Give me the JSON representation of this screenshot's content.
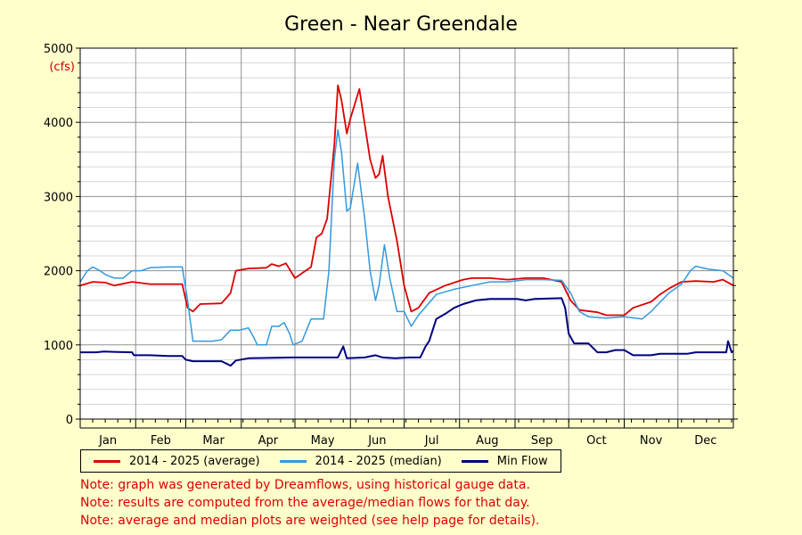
{
  "chart_data": {
    "type": "line",
    "title": "Green - Near Greendale",
    "ylabel_units": "(cfs)",
    "ylim": [
      0,
      5000
    ],
    "y_ticks": [
      0,
      1000,
      2000,
      3000,
      4000,
      5000
    ],
    "x_domain": [
      1,
      366
    ],
    "x_unit": "day of year",
    "month_labels": [
      "Jan",
      "Feb",
      "Mar",
      "Apr",
      "May",
      "Jun",
      "Jul",
      "Aug",
      "Sep",
      "Oct",
      "Nov",
      "Dec"
    ],
    "grid": true,
    "legend_position": "bottom",
    "series": [
      {
        "name": "2014 - 2025 (average)",
        "color": "#dd0000",
        "points": [
          [
            1,
            1800
          ],
          [
            8,
            1850
          ],
          [
            15,
            1840
          ],
          [
            20,
            1800
          ],
          [
            30,
            1850
          ],
          [
            40,
            1820
          ],
          [
            50,
            1820
          ],
          [
            58,
            1820
          ],
          [
            61,
            1500
          ],
          [
            64,
            1450
          ],
          [
            68,
            1550
          ],
          [
            80,
            1560
          ],
          [
            85,
            1700
          ],
          [
            88,
            2000
          ],
          [
            95,
            2030
          ],
          [
            105,
            2040
          ],
          [
            108,
            2090
          ],
          [
            112,
            2060
          ],
          [
            116,
            2100
          ],
          [
            121,
            1900
          ],
          [
            124,
            1950
          ],
          [
            130,
            2050
          ],
          [
            133,
            2450
          ],
          [
            136,
            2500
          ],
          [
            139,
            2700
          ],
          [
            143,
            3700
          ],
          [
            145,
            4500
          ],
          [
            147,
            4300
          ],
          [
            150,
            3850
          ],
          [
            152,
            4050
          ],
          [
            157,
            4450
          ],
          [
            163,
            3500
          ],
          [
            166,
            3250
          ],
          [
            168,
            3300
          ],
          [
            170,
            3550
          ],
          [
            173,
            3000
          ],
          [
            178,
            2400
          ],
          [
            182,
            1800
          ],
          [
            186,
            1450
          ],
          [
            190,
            1500
          ],
          [
            196,
            1700
          ],
          [
            205,
            1800
          ],
          [
            215,
            1880
          ],
          [
            220,
            1900
          ],
          [
            230,
            1900
          ],
          [
            240,
            1880
          ],
          [
            250,
            1900
          ],
          [
            260,
            1900
          ],
          [
            270,
            1850
          ],
          [
            275,
            1600
          ],
          [
            280,
            1470
          ],
          [
            290,
            1440
          ],
          [
            295,
            1400
          ],
          [
            305,
            1400
          ],
          [
            310,
            1500
          ],
          [
            320,
            1580
          ],
          [
            325,
            1680
          ],
          [
            330,
            1760
          ],
          [
            337,
            1850
          ],
          [
            345,
            1860
          ],
          [
            355,
            1850
          ],
          [
            360,
            1880
          ],
          [
            366,
            1800
          ]
        ]
      },
      {
        "name": "2014 - 2025 (median)",
        "color": "#3399dd",
        "points": [
          [
            1,
            1850
          ],
          [
            5,
            2000
          ],
          [
            8,
            2050
          ],
          [
            12,
            2000
          ],
          [
            15,
            1950
          ],
          [
            20,
            1900
          ],
          [
            25,
            1900
          ],
          [
            30,
            2000
          ],
          [
            35,
            2000
          ],
          [
            40,
            2040
          ],
          [
            50,
            2050
          ],
          [
            58,
            2050
          ],
          [
            61,
            1600
          ],
          [
            64,
            1050
          ],
          [
            70,
            1050
          ],
          [
            75,
            1050
          ],
          [
            80,
            1070
          ],
          [
            85,
            1200
          ],
          [
            90,
            1200
          ],
          [
            95,
            1230
          ],
          [
            98,
            1100
          ],
          [
            100,
            1000
          ],
          [
            105,
            1000
          ],
          [
            108,
            1250
          ],
          [
            112,
            1250
          ],
          [
            115,
            1300
          ],
          [
            118,
            1150
          ],
          [
            120,
            1000
          ],
          [
            125,
            1050
          ],
          [
            130,
            1350
          ],
          [
            137,
            1350
          ],
          [
            140,
            2000
          ],
          [
            143,
            3500
          ],
          [
            145,
            3900
          ],
          [
            147,
            3600
          ],
          [
            150,
            2800
          ],
          [
            152,
            2850
          ],
          [
            156,
            3450
          ],
          [
            160,
            2700
          ],
          [
            163,
            2000
          ],
          [
            166,
            1600
          ],
          [
            168,
            1800
          ],
          [
            171,
            2350
          ],
          [
            174,
            1900
          ],
          [
            178,
            1450
          ],
          [
            182,
            1450
          ],
          [
            186,
            1250
          ],
          [
            190,
            1400
          ],
          [
            200,
            1680
          ],
          [
            210,
            1750
          ],
          [
            220,
            1800
          ],
          [
            230,
            1850
          ],
          [
            240,
            1850
          ],
          [
            250,
            1880
          ],
          [
            260,
            1880
          ],
          [
            270,
            1870
          ],
          [
            275,
            1700
          ],
          [
            280,
            1450
          ],
          [
            285,
            1380
          ],
          [
            295,
            1360
          ],
          [
            305,
            1380
          ],
          [
            315,
            1350
          ],
          [
            320,
            1450
          ],
          [
            330,
            1700
          ],
          [
            337,
            1820
          ],
          [
            342,
            2000
          ],
          [
            345,
            2060
          ],
          [
            352,
            2020
          ],
          [
            360,
            2000
          ],
          [
            366,
            1900
          ]
        ]
      },
      {
        "name": "Min Flow",
        "color": "#000080",
        "points": [
          [
            1,
            900
          ],
          [
            10,
            900
          ],
          [
            14,
            910
          ],
          [
            30,
            900
          ],
          [
            31,
            860
          ],
          [
            40,
            860
          ],
          [
            50,
            850
          ],
          [
            58,
            850
          ],
          [
            60,
            800
          ],
          [
            64,
            780
          ],
          [
            80,
            780
          ],
          [
            85,
            720
          ],
          [
            88,
            790
          ],
          [
            95,
            820
          ],
          [
            120,
            830
          ],
          [
            130,
            830
          ],
          [
            145,
            830
          ],
          [
            148,
            980
          ],
          [
            150,
            820
          ],
          [
            160,
            830
          ],
          [
            166,
            860
          ],
          [
            170,
            830
          ],
          [
            177,
            820
          ],
          [
            185,
            830
          ],
          [
            191,
            830
          ],
          [
            194,
            980
          ],
          [
            196,
            1050
          ],
          [
            200,
            1350
          ],
          [
            205,
            1420
          ],
          [
            210,
            1500
          ],
          [
            215,
            1550
          ],
          [
            222,
            1600
          ],
          [
            230,
            1620
          ],
          [
            245,
            1620
          ],
          [
            250,
            1600
          ],
          [
            255,
            1620
          ],
          [
            270,
            1630
          ],
          [
            272,
            1500
          ],
          [
            274,
            1150
          ],
          [
            277,
            1020
          ],
          [
            285,
            1020
          ],
          [
            290,
            900
          ],
          [
            295,
            900
          ],
          [
            300,
            930
          ],
          [
            305,
            930
          ],
          [
            310,
            860
          ],
          [
            320,
            860
          ],
          [
            325,
            880
          ],
          [
            333,
            880
          ],
          [
            340,
            880
          ],
          [
            345,
            900
          ],
          [
            350,
            900
          ],
          [
            362,
            900
          ],
          [
            363,
            1050
          ],
          [
            365,
            900
          ],
          [
            366,
            920
          ]
        ]
      }
    ],
    "notes": [
      "Note: graph was generated by Dreamflows, using historical gauge data.",
      "Note: results are computed from the average/median flows for that day.",
      "Note: average and median plots are weighted (see help page for details)."
    ]
  }
}
